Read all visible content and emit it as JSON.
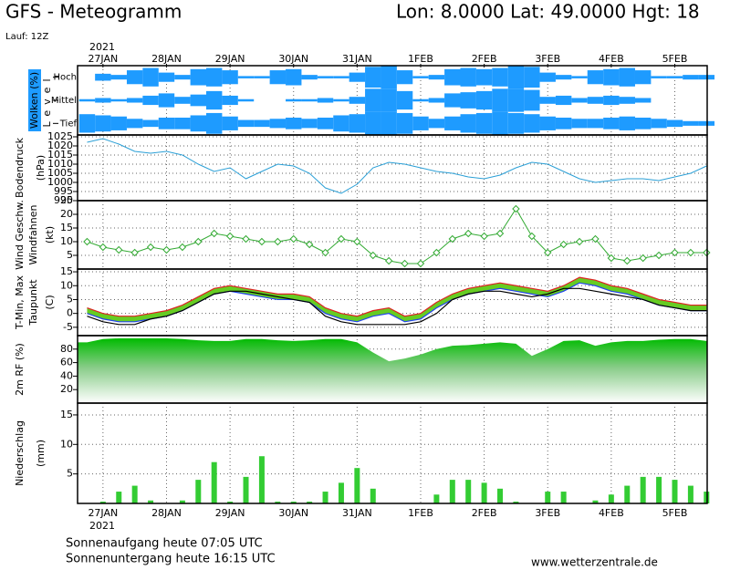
{
  "header": {
    "title": "GFS - Meteogramm",
    "location": "Lon: 8.0000 Lat: 49.0000 Hgt: 18",
    "run": "Lauf: 12Z"
  },
  "time_axis": {
    "year": "2021",
    "xlim": [
      -0.4,
      9.51
    ],
    "xticks": [
      {
        "value": 0,
        "label": "27JAN"
      },
      {
        "value": 1,
        "label": "28JAN"
      },
      {
        "value": 2,
        "label": "29JAN"
      },
      {
        "value": 3,
        "label": "30JAN"
      },
      {
        "value": 4,
        "label": "31JAN"
      },
      {
        "value": 5,
        "label": "1FEB"
      },
      {
        "value": 6,
        "label": "2FEB"
      },
      {
        "value": 7,
        "label": "3FEB"
      },
      {
        "value": 8,
        "label": "4FEB"
      },
      {
        "value": 9,
        "label": "5FEB"
      }
    ],
    "x": [
      -0.25,
      0,
      0.25,
      0.5,
      0.75,
      1,
      1.25,
      1.5,
      1.75,
      2,
      2.25,
      2.5,
      2.75,
      3,
      3.25,
      3.5,
      3.75,
      4,
      4.25,
      4.5,
      4.75,
      5,
      5.25,
      5.5,
      5.75,
      6,
      6.25,
      6.5,
      6.75,
      7,
      7.25,
      7.5,
      7.75,
      8,
      8.25,
      8.5,
      8.75,
      9,
      9.25,
      9.5
    ]
  },
  "chart_data": [
    {
      "type": "cloud",
      "title": "Wolken (%)",
      "subtitle": "Level",
      "series": [
        {
          "name": "Hoch",
          "color": "#1e9bff",
          "values": [
            0,
            30,
            20,
            60,
            80,
            40,
            20,
            70,
            80,
            60,
            10,
            10,
            60,
            70,
            20,
            10,
            10,
            40,
            90,
            100,
            60,
            10,
            20,
            70,
            80,
            70,
            80,
            100,
            90,
            40,
            20,
            10,
            60,
            70,
            80,
            60,
            10,
            10,
            20,
            20
          ]
        },
        {
          "name": "Mittel",
          "color": "#1e9bff",
          "values": [
            10,
            20,
            10,
            20,
            40,
            60,
            30,
            50,
            80,
            40,
            10,
            0,
            0,
            10,
            10,
            20,
            10,
            30,
            100,
            100,
            80,
            10,
            20,
            60,
            70,
            80,
            100,
            100,
            90,
            30,
            40,
            20,
            30,
            40,
            30,
            20,
            0,
            0,
            0,
            0
          ]
        },
        {
          "name": "Tief",
          "color": "#1e9bff",
          "values": [
            80,
            70,
            60,
            40,
            30,
            50,
            50,
            70,
            90,
            60,
            30,
            30,
            40,
            50,
            40,
            50,
            70,
            80,
            100,
            100,
            90,
            60,
            40,
            60,
            80,
            90,
            100,
            90,
            80,
            60,
            50,
            40,
            40,
            50,
            60,
            50,
            40,
            30,
            20,
            20
          ]
        }
      ]
    },
    {
      "type": "line",
      "title": "Bodendruck",
      "ylabel": "(hPa)",
      "ylim": [
        990,
        1026
      ],
      "yticks": [
        990,
        995,
        1000,
        1005,
        1010,
        1015,
        1020,
        1025
      ],
      "grid": true,
      "series": [
        {
          "color": "#2a9fd6",
          "values": [
            1022,
            1024,
            1021,
            1017,
            1016,
            1017,
            1015,
            1010,
            1006,
            1008,
            1002,
            1006,
            1010,
            1009,
            1005,
            997,
            994,
            999,
            1008,
            1011,
            1010,
            1008,
            1006,
            1005,
            1003,
            1002,
            1004,
            1008,
            1011,
            1010,
            1006,
            1002,
            1000,
            1001,
            1002,
            1002,
            1001,
            1003,
            1005,
            1009
          ]
        }
      ]
    },
    {
      "type": "wind",
      "title": "Wind Geschw.",
      "subtitle": "Windfahnen",
      "ylabel": "(kt)",
      "ylim": [
        0,
        25
      ],
      "yticks": [
        5,
        10,
        15,
        20,
        25
      ],
      "grid": true,
      "series": [
        {
          "color": "#33aa33",
          "values": [
            10,
            8,
            7,
            6,
            8,
            7,
            8,
            10,
            13,
            12,
            11,
            10,
            10,
            11,
            9,
            6,
            11,
            10,
            5,
            3,
            2,
            2,
            6,
            11,
            13,
            12,
            13,
            22,
            12,
            6,
            9,
            10,
            11,
            4,
            3,
            4,
            5,
            6,
            6,
            6
          ]
        }
      ]
    },
    {
      "type": "temperature",
      "title": "T-Min, Max",
      "subtitle": "Taupunkt",
      "ylabel": "(C)",
      "ylim": [
        -8,
        16
      ],
      "yticks": [
        -5,
        0,
        5,
        10,
        15
      ],
      "grid": true,
      "series": [
        {
          "name": "Max",
          "color": "#dd2222",
          "values": [
            2,
            0,
            -1,
            -1,
            0,
            1,
            3,
            6,
            9,
            10,
            9,
            8,
            7,
            7,
            6,
            2,
            0,
            -1,
            1,
            2,
            -1,
            0,
            4,
            7,
            9,
            10,
            11,
            10,
            9,
            8,
            10,
            13,
            12,
            10,
            9,
            7,
            5,
            4,
            3,
            3
          ]
        },
        {
          "name": "T-Min",
          "color": "#2244ee",
          "values": [
            0,
            -2,
            -3,
            -3,
            -2,
            -1,
            1,
            4,
            7,
            8,
            7,
            6,
            5,
            5,
            4,
            0,
            -2,
            -3,
            -1,
            0,
            -3,
            -2,
            2,
            5,
            7,
            8,
            9,
            8,
            7,
            6,
            8,
            11,
            10,
            8,
            7,
            5,
            3,
            2,
            1,
            1
          ]
        },
        {
          "name": "Taupunkt",
          "color": "#000000",
          "values": [
            -1,
            -3,
            -4,
            -4,
            -2,
            -1,
            1,
            4,
            7,
            8,
            8,
            7,
            6,
            5,
            4,
            -1,
            -3,
            -4,
            -4,
            -4,
            -4,
            -3,
            0,
            5,
            7,
            8,
            8,
            7,
            6,
            7,
            9,
            9,
            8,
            7,
            6,
            5,
            3,
            2,
            1,
            1
          ]
        }
      ]
    },
    {
      "type": "area",
      "title": "2m RF (%)",
      "ylim": [
        0,
        100
      ],
      "yticks": [
        20,
        40,
        60,
        80
      ],
      "grid": true,
      "series": [
        {
          "color": "#22cc22",
          "values": [
            90,
            95,
            96,
            96,
            96,
            96,
            95,
            93,
            92,
            92,
            95,
            95,
            93,
            92,
            93,
            95,
            95,
            90,
            75,
            62,
            66,
            72,
            80,
            85,
            86,
            88,
            90,
            88,
            70,
            80,
            92,
            93,
            85,
            90,
            92,
            92,
            94,
            95,
            95,
            92
          ]
        }
      ]
    },
    {
      "type": "bar",
      "title": "Niederschlag",
      "ylabel": "(mm)",
      "ylim": [
        0,
        17
      ],
      "yticks": [
        5,
        10,
        15
      ],
      "grid": true,
      "series": [
        {
          "color": "#33cc33",
          "values": [
            0,
            0.3,
            2,
            3,
            0.5,
            0,
            0.5,
            4,
            7,
            0.3,
            4.5,
            8,
            0.3,
            0.3,
            0.3,
            2,
            3.5,
            6,
            2.5,
            0,
            0,
            0,
            1.5,
            4,
            4,
            3.5,
            2.5,
            0.3,
            0,
            2,
            2,
            0,
            0.5,
            1.5,
            3,
            4.5,
            4.5,
            4,
            3,
            2
          ]
        }
      ]
    }
  ],
  "footer": {
    "sunrise": "Sonnenaufgang heute 07:05 UTC",
    "sunset": "Sonnenuntergang heute 16:15 UTC",
    "site": "www.wetterzentrale.de"
  }
}
